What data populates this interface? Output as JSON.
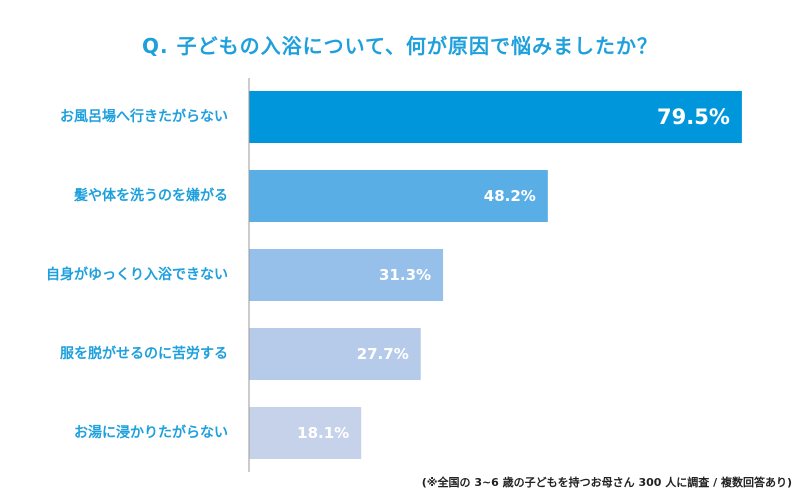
{
  "chart_data": {
    "type": "bar",
    "orientation": "horizontal",
    "title": "Q. 子どもの入浴について、何が原因で悩みましたか？",
    "categories": [
      "お風呂場へ行きたがらない",
      "髪や体を洗うのを嫌がる",
      "自身がゆっくり入浴できない",
      "服を脱がせるのに苦労する",
      "お湯に浸かりたがらない"
    ],
    "values": [
      79.5,
      48.2,
      31.3,
      27.7,
      18.1
    ],
    "value_labels": [
      "79.5%",
      "48.2%",
      "31.3%",
      "27.7%",
      "18.1%"
    ],
    "colors": [
      "#0096dc",
      "#5aaee6",
      "#96c0ea",
      "#b6cbea",
      "#c6d1ea"
    ],
    "xlim": [
      0,
      100
    ],
    "grid": false,
    "note": "(※全国の 3~6 歳の子どもを持つお母さん 300 人に調査 / 複数回答あり)"
  }
}
